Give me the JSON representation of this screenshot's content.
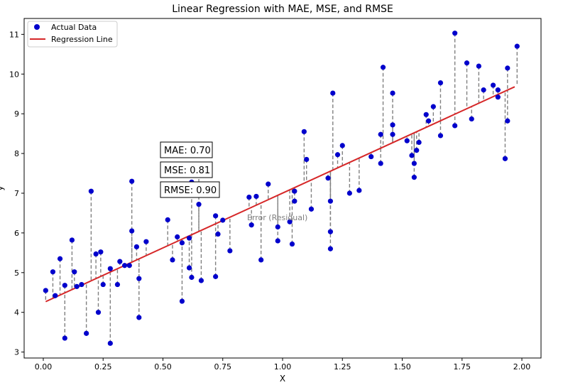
{
  "chart_data": {
    "type": "scatter",
    "title": "Linear Regression with MAE, MSE, and RMSE",
    "xlabel": "X",
    "ylabel": "y",
    "xlim": [
      -0.08,
      2.08
    ],
    "ylim": [
      2.85,
      11.4
    ],
    "x_ticks": [
      0.0,
      0.25,
      0.5,
      0.75,
      1.0,
      1.25,
      1.5,
      1.75,
      2.0
    ],
    "x_tick_labels": [
      "0.00",
      "0.25",
      "0.50",
      "0.75",
      "1.00",
      "1.25",
      "1.50",
      "1.75",
      "2.00"
    ],
    "y_ticks": [
      3,
      4,
      5,
      6,
      7,
      8,
      9,
      10,
      11
    ],
    "y_tick_labels": [
      "3",
      "4",
      "5",
      "6",
      "7",
      "8",
      "9",
      "10",
      "11"
    ],
    "grid": false,
    "legend": {
      "position": "upper-left",
      "entries": [
        {
          "label": "Actual Data",
          "marker": "dot",
          "color": "#0000cc"
        },
        {
          "label": "Regression Line",
          "marker": "line",
          "color": "#d62728"
        }
      ]
    },
    "regression_line": {
      "name": "Regression Line",
      "x": [
        0.01,
        1.97
      ],
      "y": [
        4.27,
        9.68
      ],
      "color": "#d62728"
    },
    "series": [
      {
        "name": "Actual Data",
        "color": "#0000cc",
        "points": [
          [
            0.01,
            4.55
          ],
          [
            0.04,
            5.02
          ],
          [
            0.05,
            4.42
          ],
          [
            0.07,
            5.35
          ],
          [
            0.09,
            3.35
          ],
          [
            0.09,
            4.68
          ],
          [
            0.12,
            5.82
          ],
          [
            0.13,
            5.02
          ],
          [
            0.14,
            4.65
          ],
          [
            0.16,
            4.7
          ],
          [
            0.18,
            3.47
          ],
          [
            0.2,
            7.05
          ],
          [
            0.22,
            5.47
          ],
          [
            0.23,
            4.0
          ],
          [
            0.24,
            5.52
          ],
          [
            0.25,
            4.7
          ],
          [
            0.28,
            5.1
          ],
          [
            0.28,
            3.22
          ],
          [
            0.31,
            4.7
          ],
          [
            0.32,
            5.28
          ],
          [
            0.34,
            5.18
          ],
          [
            0.36,
            5.18
          ],
          [
            0.37,
            7.3
          ],
          [
            0.37,
            6.05
          ],
          [
            0.39,
            5.65
          ],
          [
            0.4,
            4.85
          ],
          [
            0.4,
            3.87
          ],
          [
            0.43,
            5.78
          ],
          [
            0.52,
            6.33
          ],
          [
            0.54,
            5.32
          ],
          [
            0.56,
            5.9
          ],
          [
            0.58,
            5.75
          ],
          [
            0.58,
            4.28
          ],
          [
            0.61,
            5.12
          ],
          [
            0.61,
            5.87
          ],
          [
            0.62,
            7.28
          ],
          [
            0.62,
            4.88
          ],
          [
            0.65,
            7.5
          ],
          [
            0.65,
            6.72
          ],
          [
            0.66,
            4.8
          ],
          [
            0.72,
            6.43
          ],
          [
            0.72,
            4.9
          ],
          [
            0.73,
            5.97
          ],
          [
            0.75,
            6.32
          ],
          [
            0.78,
            5.55
          ],
          [
            0.86,
            6.9
          ],
          [
            0.87,
            6.2
          ],
          [
            0.89,
            6.92
          ],
          [
            0.91,
            5.32
          ],
          [
            0.94,
            7.23
          ],
          [
            0.98,
            6.15
          ],
          [
            0.98,
            5.8
          ],
          [
            1.03,
            6.28
          ],
          [
            1.04,
            5.72
          ],
          [
            1.05,
            7.05
          ],
          [
            1.05,
            6.8
          ],
          [
            1.09,
            8.55
          ],
          [
            1.1,
            7.85
          ],
          [
            1.12,
            6.6
          ],
          [
            1.19,
            7.38
          ],
          [
            1.2,
            6.8
          ],
          [
            1.2,
            6.03
          ],
          [
            1.2,
            5.6
          ],
          [
            1.21,
            9.52
          ],
          [
            1.23,
            7.97
          ],
          [
            1.25,
            8.2
          ],
          [
            1.28,
            7.0
          ],
          [
            1.32,
            7.07
          ],
          [
            1.37,
            7.92
          ],
          [
            1.41,
            8.48
          ],
          [
            1.42,
            10.17
          ],
          [
            1.41,
            7.75
          ],
          [
            1.46,
            9.52
          ],
          [
            1.46,
            8.72
          ],
          [
            1.46,
            8.48
          ],
          [
            1.52,
            8.32
          ],
          [
            1.54,
            7.95
          ],
          [
            1.55,
            7.75
          ],
          [
            1.55,
            7.4
          ],
          [
            1.56,
            8.08
          ],
          [
            1.57,
            8.28
          ],
          [
            1.6,
            8.98
          ],
          [
            1.61,
            8.82
          ],
          [
            1.63,
            9.18
          ],
          [
            1.66,
            9.78
          ],
          [
            1.66,
            8.45
          ],
          [
            1.72,
            11.03
          ],
          [
            1.72,
            8.7
          ],
          [
            1.77,
            10.28
          ],
          [
            1.79,
            8.87
          ],
          [
            1.82,
            10.2
          ],
          [
            1.84,
            9.6
          ],
          [
            1.88,
            9.72
          ],
          [
            1.9,
            9.42
          ],
          [
            1.9,
            9.6
          ],
          [
            1.93,
            7.87
          ],
          [
            1.94,
            10.15
          ],
          [
            1.94,
            8.82
          ],
          [
            1.98,
            10.7
          ]
        ]
      }
    ],
    "residual_lines": {
      "style": "dashed",
      "color": "#808080"
    },
    "metrics": [
      {
        "label": "MAE: 0.70"
      },
      {
        "label": "MSE: 0.81"
      },
      {
        "label": "RMSE: 0.90"
      }
    ],
    "annotation": {
      "text": "Error (Residual)"
    }
  }
}
